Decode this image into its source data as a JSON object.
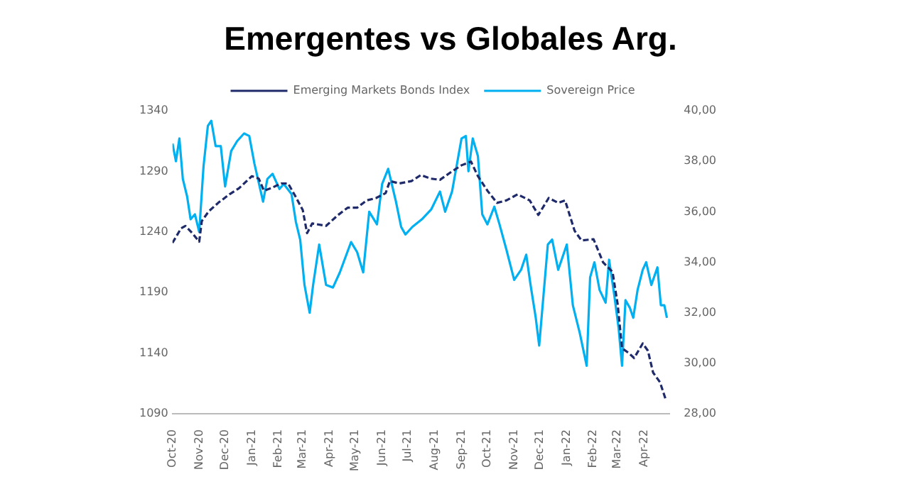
{
  "chart_data": {
    "type": "line",
    "title": "Emergentes vs Globales Arg.",
    "legend": "top",
    "marker": "none",
    "grid": false,
    "xlim": [
      "2020-10-01",
      "2022-04-30"
    ],
    "xticks": [
      {
        "value": "2020-10-01",
        "label": "Oct-20"
      },
      {
        "value": "2020-11-01",
        "label": "Nov-20"
      },
      {
        "value": "2020-12-01",
        "label": "Dec-20"
      },
      {
        "value": "2021-01-01",
        "label": "Jan-21"
      },
      {
        "value": "2021-02-01",
        "label": "Feb-21"
      },
      {
        "value": "2021-03-01",
        "label": "Mar-21"
      },
      {
        "value": "2021-04-01",
        "label": "Apr-21"
      },
      {
        "value": "2021-05-01",
        "label": "May-21"
      },
      {
        "value": "2021-06-01",
        "label": "Jun-21"
      },
      {
        "value": "2021-07-01",
        "label": "Jul-21"
      },
      {
        "value": "2021-08-01",
        "label": "Aug-21"
      },
      {
        "value": "2021-09-01",
        "label": "Sep-21"
      },
      {
        "value": "2021-10-01",
        "label": "Oct-21"
      },
      {
        "value": "2021-11-01",
        "label": "Nov-21"
      },
      {
        "value": "2021-12-01",
        "label": "Dec-21"
      },
      {
        "value": "2022-01-01",
        "label": "Jan-22"
      },
      {
        "value": "2022-02-01",
        "label": "Feb-22"
      },
      {
        "value": "2022-03-01",
        "label": "Mar-22"
      },
      {
        "value": "2022-04-01",
        "label": "Apr-22"
      }
    ],
    "ylim": [
      1090,
      1340
    ],
    "yticks": [
      1090,
      1140,
      1190,
      1240,
      1290,
      1340
    ],
    "y2lim": [
      28,
      40
    ],
    "y2ticks": [
      {
        "value": 28,
        "label": "28,00"
      },
      {
        "value": 30,
        "label": "30,00"
      },
      {
        "value": 32,
        "label": "32,00"
      },
      {
        "value": 34,
        "label": "34,00"
      },
      {
        "value": 36,
        "label": "36,00"
      },
      {
        "value": 38,
        "label": "38,00"
      },
      {
        "value": 40,
        "label": "40,00"
      }
    ],
    "series": [
      {
        "name": "Emerging Markets Bonds Index",
        "color": "#1f2a6b",
        "line_style": "dashed",
        "axis": "y",
        "x": [
          "2020-10-01",
          "2020-10-11",
          "2020-10-16",
          "2020-10-24",
          "2020-11-01",
          "2020-11-04",
          "2020-11-12",
          "2020-11-23",
          "2020-12-06",
          "2020-12-17",
          "2021-01-01",
          "2021-01-09",
          "2021-01-15",
          "2021-01-23",
          "2021-02-04",
          "2021-02-12",
          "2021-02-20",
          "2021-03-01",
          "2021-03-06",
          "2021-03-12",
          "2021-03-28",
          "2021-04-11",
          "2021-04-22",
          "2021-05-03",
          "2021-05-14",
          "2021-05-25",
          "2021-06-05",
          "2021-06-10",
          "2021-06-21",
          "2021-07-05",
          "2021-07-16",
          "2021-07-27",
          "2021-08-07",
          "2021-08-21",
          "2021-09-01",
          "2021-09-12",
          "2021-09-20",
          "2021-10-01",
          "2021-10-12",
          "2021-10-23",
          "2021-11-05",
          "2021-11-19",
          "2021-11-29",
          "2021-12-11",
          "2021-12-22",
          "2021-12-30",
          "2022-01-10",
          "2022-01-18",
          "2022-02-01",
          "2022-02-12",
          "2022-02-23",
          "2022-03-01",
          "2022-03-06",
          "2022-03-14",
          "2022-03-20",
          "2022-03-30",
          "2022-04-05",
          "2022-04-11",
          "2022-04-19",
          "2022-04-26"
        ],
        "values": [
          1231,
          1243,
          1245,
          1239,
          1232,
          1249,
          1257,
          1264,
          1271,
          1276,
          1286,
          1284,
          1274,
          1276,
          1280,
          1280,
          1270,
          1258,
          1239,
          1247,
          1245,
          1254,
          1260,
          1260,
          1266,
          1268,
          1272,
          1282,
          1280,
          1282,
          1287,
          1284,
          1283,
          1290,
          1295,
          1298,
          1286,
          1274,
          1264,
          1266,
          1271,
          1266,
          1254,
          1268,
          1264,
          1266,
          1241,
          1233,
          1234,
          1215,
          1207,
          1180,
          1144,
          1140,
          1136,
          1148,
          1142,
          1124,
          1116,
          1101
        ]
      },
      {
        "name": "Sovereign Price",
        "color": "#00b0f0",
        "line_style": "solid",
        "axis": "y2",
        "x": [
          "2020-10-01",
          "2020-10-05",
          "2020-10-09",
          "2020-10-13",
          "2020-10-18",
          "2020-10-22",
          "2020-10-27",
          "2020-11-01",
          "2020-11-06",
          "2020-11-11",
          "2020-11-15",
          "2020-11-20",
          "2020-11-26",
          "2020-12-01",
          "2020-12-08",
          "2020-12-15",
          "2020-12-23",
          "2020-12-29",
          "2021-01-04",
          "2021-01-14",
          "2021-01-19",
          "2021-01-25",
          "2021-02-02",
          "2021-02-07",
          "2021-02-16",
          "2021-02-21",
          "2021-02-26",
          "2021-03-03",
          "2021-03-09",
          "2021-03-13",
          "2021-03-20",
          "2021-03-28",
          "2021-04-05",
          "2021-04-13",
          "2021-04-26",
          "2021-05-03",
          "2021-05-10",
          "2021-05-17",
          "2021-05-26",
          "2021-06-01",
          "2021-06-08",
          "2021-06-17",
          "2021-06-23",
          "2021-06-28",
          "2021-07-06",
          "2021-07-17",
          "2021-07-28",
          "2021-08-07",
          "2021-08-13",
          "2021-08-21",
          "2021-09-01",
          "2021-09-06",
          "2021-09-09",
          "2021-09-14",
          "2021-09-20",
          "2021-09-25",
          "2021-10-01",
          "2021-10-09",
          "2021-10-15",
          "2021-10-23",
          "2021-11-01",
          "2021-11-09",
          "2021-11-15",
          "2021-11-20",
          "2021-11-26",
          "2021-11-30",
          "2021-12-06",
          "2021-12-10",
          "2021-12-15",
          "2021-12-22",
          "2022-01-01",
          "2022-01-08",
          "2022-01-16",
          "2022-01-24",
          "2022-01-28",
          "2022-02-02",
          "2022-02-08",
          "2022-02-15",
          "2022-02-19",
          "2022-02-25",
          "2022-03-02",
          "2022-03-06",
          "2022-03-10",
          "2022-03-15",
          "2022-03-19",
          "2022-03-24",
          "2022-03-30",
          "2022-04-03",
          "2022-04-09",
          "2022-04-16",
          "2022-04-20",
          "2022-04-24",
          "2022-04-27"
        ],
        "values": [
          38.7,
          38.0,
          38.9,
          37.3,
          36.6,
          35.7,
          35.9,
          35.2,
          37.8,
          39.4,
          39.6,
          38.6,
          38.6,
          37.0,
          38.4,
          38.8,
          39.1,
          39.0,
          37.9,
          36.4,
          37.3,
          37.5,
          36.9,
          37.1,
          36.7,
          35.6,
          34.9,
          33.1,
          32.0,
          33.1,
          34.7,
          33.1,
          33.0,
          33.6,
          34.8,
          34.4,
          33.6,
          36.0,
          35.5,
          37.1,
          37.7,
          36.4,
          35.4,
          35.1,
          35.4,
          35.7,
          36.1,
          36.8,
          36.0,
          36.8,
          38.9,
          39.0,
          37.6,
          38.9,
          38.2,
          35.9,
          35.5,
          36.2,
          35.5,
          34.5,
          33.3,
          33.7,
          34.3,
          33.1,
          31.8,
          30.7,
          33.1,
          34.7,
          34.9,
          33.7,
          34.7,
          32.3,
          31.2,
          29.9,
          33.4,
          34.0,
          32.9,
          32.4,
          34.1,
          32.7,
          31.4,
          29.9,
          32.5,
          32.2,
          31.8,
          32.9,
          33.7,
          34.0,
          33.1,
          33.8,
          32.3,
          32.3,
          31.8
        ]
      }
    ]
  }
}
